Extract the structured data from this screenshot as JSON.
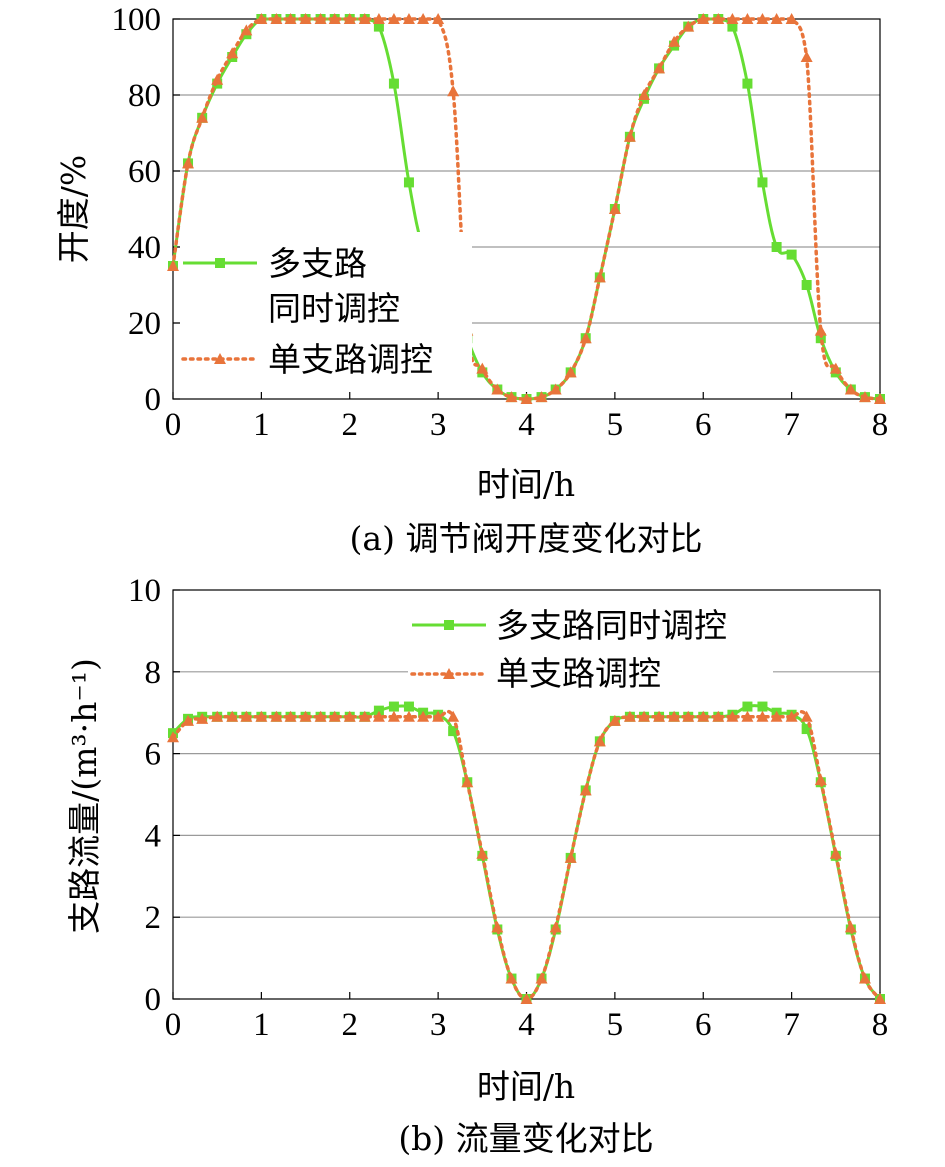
{
  "colors": {
    "multi": "#66dd33",
    "single": "#e8743b",
    "grid": "#9a9a9a",
    "axis": "#000000"
  },
  "chart_data": [
    {
      "id": "a",
      "type": "line",
      "caption": "(a) 调节阀开度变化对比",
      "xlabel": "时间/h",
      "ylabel": "开度/%",
      "xlim": [
        0,
        8
      ],
      "ylim": [
        0,
        100
      ],
      "xticks": [
        "0",
        "1",
        "2",
        "3",
        "4",
        "5",
        "6",
        "7",
        "8"
      ],
      "yticks": [
        "0",
        "20",
        "40",
        "60",
        "80",
        "100"
      ],
      "legend": [
        "多支路",
        "同时调控",
        "单支路调控"
      ],
      "series": [
        {
          "name": "多支路同时调控",
          "marker": "square",
          "color": "#66dd33",
          "x": [
            0,
            0.17,
            0.33,
            0.5,
            0.67,
            0.83,
            1.0,
            1.17,
            1.33,
            1.5,
            1.67,
            1.83,
            2.0,
            2.17,
            2.33,
            2.5,
            2.67,
            2.83,
            3.0,
            3.17,
            3.33,
            3.5,
            3.67,
            3.83,
            4.0,
            4.17,
            4.33,
            4.5,
            4.67,
            4.83,
            5.0,
            5.17,
            5.33,
            5.5,
            5.67,
            5.83,
            6.0,
            6.17,
            6.33,
            6.5,
            6.67,
            6.83,
            7.0,
            7.17,
            7.33,
            7.5,
            7.67,
            7.83,
            8.0
          ],
          "values": [
            35,
            62,
            74,
            83,
            90,
            96,
            100,
            100,
            100,
            100,
            100,
            100,
            100,
            100,
            98,
            83,
            57,
            40,
            38,
            29,
            16,
            7,
            2.5,
            0.5,
            0,
            0.5,
            2.5,
            7,
            16,
            32,
            50,
            69,
            79,
            87,
            93,
            98,
            100,
            100,
            98,
            83,
            57,
            40,
            38,
            30,
            16,
            7,
            2.5,
            0.5,
            0
          ]
        },
        {
          "name": "单支路调控",
          "marker": "triangle",
          "color": "#e8743b",
          "x": [
            0,
            0.17,
            0.33,
            0.5,
            0.67,
            0.83,
            1.0,
            1.17,
            1.33,
            1.5,
            1.67,
            1.83,
            2.0,
            2.17,
            2.33,
            2.5,
            2.67,
            2.83,
            3.0,
            3.17,
            3.33,
            3.5,
            3.67,
            3.83,
            4.0,
            4.17,
            4.33,
            4.5,
            4.67,
            4.83,
            5.0,
            5.17,
            5.33,
            5.5,
            5.67,
            5.83,
            6.0,
            6.17,
            6.33,
            6.5,
            6.67,
            6.83,
            7.0,
            7.17,
            7.33,
            7.5,
            7.67,
            7.83,
            8.0
          ],
          "values": [
            35,
            62,
            74,
            84,
            91,
            97,
            100,
            100,
            100,
            100,
            100,
            100,
            100,
            100,
            100,
            100,
            100,
            100,
            100,
            81,
            18,
            8,
            2.5,
            0.5,
            0,
            0.5,
            2.5,
            7,
            16,
            32,
            50,
            69,
            80,
            87,
            94,
            98,
            100,
            100,
            100,
            100,
            100,
            100,
            100,
            90,
            18,
            8,
            2.5,
            0.5,
            0
          ]
        }
      ]
    },
    {
      "id": "b",
      "type": "line",
      "caption": "(b) 流量变化对比",
      "xlabel": "时间/h",
      "ylabel": "支路流量/(m³·h⁻¹)",
      "xlim": [
        0,
        8
      ],
      "ylim": [
        0,
        10
      ],
      "xticks": [
        "0",
        "1",
        "2",
        "3",
        "4",
        "5",
        "6",
        "7",
        "8"
      ],
      "yticks": [
        "0",
        "2",
        "4",
        "6",
        "8",
        "10"
      ],
      "legend": [
        "多支路同时调控",
        "单支路调控"
      ],
      "series": [
        {
          "name": "多支路同时调控",
          "marker": "square",
          "color": "#66dd33",
          "x": [
            0,
            0.17,
            0.33,
            0.5,
            0.67,
            0.83,
            1.0,
            1.17,
            1.33,
            1.5,
            1.67,
            1.83,
            2.0,
            2.17,
            2.33,
            2.5,
            2.67,
            2.83,
            3.0,
            3.17,
            3.33,
            3.5,
            3.67,
            3.83,
            4.0,
            4.17,
            4.33,
            4.5,
            4.67,
            4.83,
            5.0,
            5.17,
            5.33,
            5.5,
            5.67,
            5.83,
            6.0,
            6.17,
            6.33,
            6.5,
            6.67,
            6.83,
            7.0,
            7.17,
            7.33,
            7.5,
            7.67,
            7.83,
            8.0
          ],
          "values": [
            6.5,
            6.85,
            6.9,
            6.9,
            6.9,
            6.9,
            6.9,
            6.9,
            6.9,
            6.9,
            6.9,
            6.9,
            6.9,
            6.9,
            7.05,
            7.15,
            7.15,
            7.0,
            6.95,
            6.55,
            5.3,
            3.5,
            1.7,
            0.5,
            0,
            0.5,
            1.7,
            3.45,
            5.1,
            6.3,
            6.8,
            6.9,
            6.9,
            6.9,
            6.9,
            6.9,
            6.9,
            6.9,
            6.95,
            7.15,
            7.15,
            7.0,
            6.95,
            6.6,
            5.3,
            3.5,
            1.7,
            0.5,
            0
          ]
        },
        {
          "name": "单支路调控",
          "marker": "triangle",
          "color": "#e8743b",
          "x": [
            0,
            0.17,
            0.33,
            0.5,
            0.67,
            0.83,
            1.0,
            1.17,
            1.33,
            1.5,
            1.67,
            1.83,
            2.0,
            2.17,
            2.33,
            2.5,
            2.67,
            2.83,
            3.0,
            3.17,
            3.33,
            3.5,
            3.67,
            3.83,
            4.0,
            4.17,
            4.33,
            4.5,
            4.67,
            4.83,
            5.0,
            5.17,
            5.33,
            5.5,
            5.67,
            5.83,
            6.0,
            6.17,
            6.33,
            6.5,
            6.67,
            6.83,
            7.0,
            7.17,
            7.33,
            7.5,
            7.67,
            7.83,
            8.0
          ],
          "values": [
            6.4,
            6.8,
            6.85,
            6.9,
            6.9,
            6.9,
            6.9,
            6.9,
            6.9,
            6.9,
            6.9,
            6.9,
            6.9,
            6.9,
            6.9,
            6.9,
            6.9,
            6.9,
            6.9,
            6.9,
            5.3,
            3.55,
            1.75,
            0.5,
            0,
            0.5,
            1.75,
            3.45,
            5.1,
            6.3,
            6.8,
            6.9,
            6.9,
            6.9,
            6.9,
            6.9,
            6.9,
            6.9,
            6.9,
            6.9,
            6.9,
            6.9,
            6.9,
            6.9,
            5.35,
            3.55,
            1.75,
            0.5,
            0
          ]
        }
      ]
    }
  ]
}
